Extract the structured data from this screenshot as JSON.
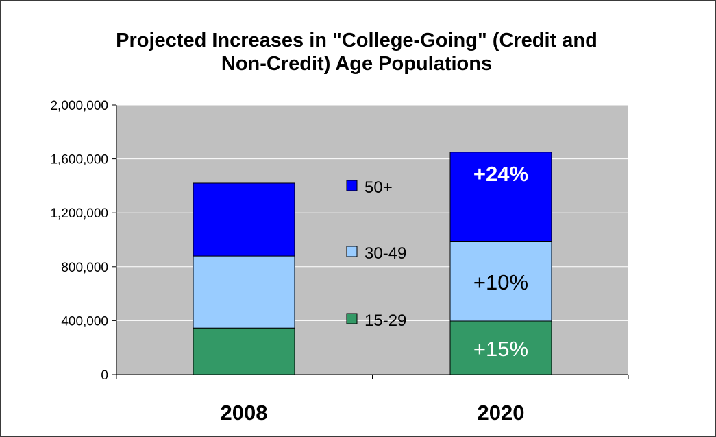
{
  "chart_data": {
    "type": "bar",
    "stacked": true,
    "title_line1": "Projected Increases in \"College-Going\" (Credit and",
    "title_line2": "Non-Credit) Age Populations",
    "xlabel": "",
    "ylabel": "",
    "categories": [
      "2008",
      "2020"
    ],
    "series": [
      {
        "name": "15-29",
        "color": "#339966",
        "values": [
          345000,
          397000
        ],
        "annotations": [
          "",
          "+15%"
        ]
      },
      {
        "name": "30-49",
        "color": "#99ccff",
        "values": [
          535000,
          588000
        ],
        "annotations": [
          "",
          "+10%"
        ]
      },
      {
        "name": "50+",
        "color": "#0000ff",
        "values": [
          540000,
          665000
        ],
        "annotations": [
          "",
          "+24%"
        ]
      }
    ],
    "ylim": [
      0,
      2000000
    ],
    "yticks": [
      0,
      400000,
      800000,
      1200000,
      1600000,
      2000000
    ],
    "ytick_labels": [
      "0",
      "400,000",
      "800,000",
      "1,200,000",
      "1,600,000",
      "2,000,000"
    ],
    "grid": true,
    "plot_background": "#c0c0c0",
    "legend_position": "center, between bars"
  }
}
